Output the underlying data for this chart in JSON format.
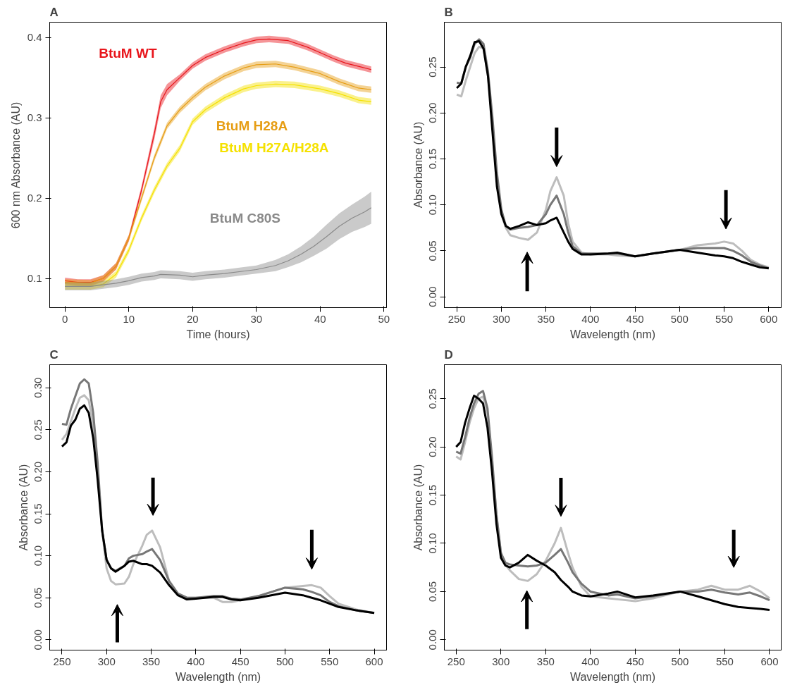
{
  "chart_data": [
    {
      "type": "line",
      "title": "A",
      "xlabel": "Time (hours)",
      "ylabel": "600 nm Absorbance (AU)",
      "xlim": [
        -2.4,
        50.4
      ],
      "xticks": [
        0,
        10,
        20,
        30,
        40,
        50
      ],
      "ylim": [
        0.0636,
        0.419
      ],
      "yticks": [
        0.1,
        0.2,
        0.3,
        0.4
      ],
      "series": [
        {
          "name": "BtuM WT",
          "color": "#e8151b",
          "x": [
            0,
            2,
            4,
            6,
            8,
            10,
            12,
            14,
            15,
            16,
            18,
            20,
            22,
            25,
            28,
            30,
            32,
            35,
            38,
            40,
            42,
            44,
            46,
            48
          ],
          "values": [
            0.097,
            0.095,
            0.095,
            0.1,
            0.115,
            0.15,
            0.21,
            0.28,
            0.32,
            0.335,
            0.35,
            0.365,
            0.375,
            0.385,
            0.393,
            0.397,
            0.398,
            0.396,
            0.388,
            0.381,
            0.374,
            0.368,
            0.364,
            0.36
          ],
          "lower": [
            0.093,
            0.091,
            0.091,
            0.096,
            0.111,
            0.146,
            0.205,
            0.273,
            0.312,
            0.328,
            0.346,
            0.361,
            0.371,
            0.381,
            0.389,
            0.393,
            0.394,
            0.392,
            0.384,
            0.377,
            0.37,
            0.364,
            0.36,
            0.356
          ],
          "upper": [
            0.101,
            0.099,
            0.099,
            0.104,
            0.119,
            0.154,
            0.215,
            0.287,
            0.328,
            0.342,
            0.354,
            0.369,
            0.379,
            0.389,
            0.397,
            0.401,
            0.402,
            0.4,
            0.392,
            0.385,
            0.378,
            0.372,
            0.368,
            0.364
          ]
        },
        {
          "name": "BtuM H28A",
          "color": "#e69d14",
          "x": [
            0,
            4,
            6,
            8,
            10,
            12,
            14,
            16,
            18,
            20,
            22,
            25,
            28,
            30,
            33,
            36,
            40,
            43,
            46,
            48
          ],
          "values": [
            0.095,
            0.094,
            0.1,
            0.115,
            0.15,
            0.2,
            0.25,
            0.29,
            0.31,
            0.325,
            0.338,
            0.352,
            0.362,
            0.366,
            0.367,
            0.363,
            0.355,
            0.345,
            0.337,
            0.335
          ],
          "lower": [
            0.091,
            0.09,
            0.096,
            0.111,
            0.146,
            0.196,
            0.246,
            0.286,
            0.306,
            0.321,
            0.334,
            0.348,
            0.358,
            0.362,
            0.363,
            0.359,
            0.351,
            0.341,
            0.333,
            0.331
          ],
          "upper": [
            0.099,
            0.098,
            0.104,
            0.119,
            0.154,
            0.204,
            0.254,
            0.294,
            0.314,
            0.329,
            0.342,
            0.356,
            0.366,
            0.37,
            0.371,
            0.367,
            0.359,
            0.349,
            0.341,
            0.339
          ]
        },
        {
          "name": "BtuM H27A/H28A",
          "color": "#f5e100",
          "x": [
            0,
            4,
            6,
            8,
            10,
            12,
            14,
            16,
            18,
            20,
            22,
            25,
            28,
            30,
            33,
            36,
            40,
            43,
            46,
            48
          ],
          "values": [
            0.09,
            0.09,
            0.093,
            0.105,
            0.135,
            0.175,
            0.21,
            0.24,
            0.262,
            0.295,
            0.31,
            0.325,
            0.336,
            0.34,
            0.342,
            0.341,
            0.336,
            0.33,
            0.322,
            0.32
          ],
          "lower": [
            0.086,
            0.086,
            0.089,
            0.101,
            0.131,
            0.171,
            0.206,
            0.236,
            0.258,
            0.291,
            0.306,
            0.321,
            0.332,
            0.336,
            0.338,
            0.337,
            0.332,
            0.326,
            0.318,
            0.316
          ],
          "upper": [
            0.094,
            0.094,
            0.097,
            0.109,
            0.139,
            0.179,
            0.214,
            0.244,
            0.266,
            0.299,
            0.314,
            0.329,
            0.34,
            0.344,
            0.346,
            0.345,
            0.34,
            0.334,
            0.326,
            0.324
          ]
        },
        {
          "name": "BtuM C80S",
          "color": "#8a8a8a",
          "x": [
            0,
            4,
            6,
            8,
            10,
            12,
            14,
            15,
            18,
            20,
            22,
            25,
            28,
            30,
            33,
            35,
            37,
            39,
            41,
            43,
            45,
            47,
            48
          ],
          "values": [
            0.09,
            0.09,
            0.092,
            0.094,
            0.097,
            0.101,
            0.103,
            0.105,
            0.104,
            0.102,
            0.104,
            0.106,
            0.109,
            0.111,
            0.116,
            0.122,
            0.13,
            0.14,
            0.152,
            0.165,
            0.175,
            0.183,
            0.188
          ],
          "lower": [
            0.085,
            0.085,
            0.087,
            0.089,
            0.092,
            0.096,
            0.098,
            0.1,
            0.099,
            0.097,
            0.099,
            0.101,
            0.104,
            0.106,
            0.109,
            0.114,
            0.12,
            0.128,
            0.137,
            0.149,
            0.158,
            0.164,
            0.168
          ],
          "upper": [
            0.095,
            0.095,
            0.097,
            0.099,
            0.102,
            0.106,
            0.108,
            0.11,
            0.109,
            0.107,
            0.109,
            0.111,
            0.114,
            0.116,
            0.123,
            0.13,
            0.14,
            0.152,
            0.167,
            0.181,
            0.192,
            0.202,
            0.208
          ]
        }
      ]
    },
    {
      "type": "line",
      "title": "B",
      "xlabel": "Wavelength (nm)",
      "ylabel": "Absorbance (AU)",
      "xlim": [
        236,
        614
      ],
      "xticks": [
        250,
        300,
        350,
        400,
        450,
        500,
        550,
        600
      ],
      "ylim": [
        -0.0118,
        0.2987
      ],
      "yticks": [
        {
          "value": 0,
          "label": "0.00"
        },
        {
          "value": 0.05,
          "label": "0.05"
        },
        {
          "value": 0.1,
          "label": "0.10"
        },
        {
          "value": 0.15,
          "label": "0.15"
        },
        {
          "value": 0.2,
          "label": "0.20"
        },
        {
          "value": 0.25,
          "label": "0.25"
        }
      ],
      "x": [
        250,
        255,
        260,
        265,
        270,
        275,
        280,
        285,
        290,
        295,
        300,
        305,
        310,
        320,
        330,
        340,
        350,
        355,
        362,
        370,
        375,
        380,
        390,
        400,
        420,
        430,
        450,
        470,
        500,
        520,
        540,
        550,
        560,
        570,
        580,
        590,
        600
      ],
      "series": [
        {
          "color": "#bdbdbd",
          "values": [
            0.22,
            0.218,
            0.235,
            0.25,
            0.265,
            0.272,
            0.27,
            0.24,
            0.19,
            0.13,
            0.09,
            0.075,
            0.067,
            0.064,
            0.062,
            0.07,
            0.095,
            0.115,
            0.13,
            0.11,
            0.08,
            0.06,
            0.048,
            0.046,
            0.046,
            0.045,
            0.044,
            0.047,
            0.051,
            0.056,
            0.058,
            0.06,
            0.058,
            0.05,
            0.04,
            0.035,
            0.032
          ]
        },
        {
          "color": "#777777",
          "values": [
            0.233,
            0.232,
            0.25,
            0.26,
            0.275,
            0.28,
            0.275,
            0.245,
            0.195,
            0.135,
            0.095,
            0.077,
            0.073,
            0.075,
            0.076,
            0.078,
            0.09,
            0.1,
            0.11,
            0.09,
            0.07,
            0.055,
            0.047,
            0.047,
            0.047,
            0.047,
            0.044,
            0.047,
            0.051,
            0.053,
            0.053,
            0.053,
            0.05,
            0.045,
            0.038,
            0.034,
            0.031
          ]
        },
        {
          "color": "#000000",
          "values": [
            0.227,
            0.232,
            0.25,
            0.262,
            0.277,
            0.278,
            0.27,
            0.24,
            0.18,
            0.12,
            0.09,
            0.077,
            0.074,
            0.077,
            0.081,
            0.078,
            0.08,
            0.083,
            0.086,
            0.07,
            0.06,
            0.052,
            0.046,
            0.046,
            0.047,
            0.048,
            0.044,
            0.047,
            0.051,
            0.048,
            0.045,
            0.044,
            0.042,
            0.038,
            0.035,
            0.032,
            0.031
          ]
        }
      ]
    },
    {
      "type": "line",
      "title": "C",
      "xlabel": "Wavelength (nm)",
      "ylabel": "Absorbance (AU)",
      "xlim": [
        236.2,
        613.8
      ],
      "xticks": [
        250,
        300,
        350,
        400,
        450,
        500,
        550,
        600
      ],
      "ylim": [
        -0.0123,
        0.3274
      ],
      "yticks": [
        {
          "value": 0,
          "label": "0.00"
        },
        {
          "value": 0.05,
          "label": "0.05"
        },
        {
          "value": 0.1,
          "label": "0.10"
        },
        {
          "value": 0.15,
          "label": "0.15"
        },
        {
          "value": 0.2,
          "label": "0.20"
        },
        {
          "value": 0.25,
          "label": "0.25"
        },
        {
          "value": 0.3,
          "label": "0.30"
        }
      ],
      "x": [
        250,
        255,
        260,
        265,
        270,
        275,
        280,
        285,
        290,
        295,
        300,
        305,
        310,
        320,
        325,
        330,
        340,
        345,
        351,
        360,
        370,
        380,
        390,
        400,
        420,
        430,
        440,
        450,
        470,
        500,
        520,
        530,
        540,
        550,
        560,
        580,
        600
      ],
      "series": [
        {
          "color": "#bdbdbd",
          "values": [
            0.238,
            0.245,
            0.26,
            0.275,
            0.288,
            0.291,
            0.285,
            0.255,
            0.2,
            0.13,
            0.085,
            0.07,
            0.066,
            0.067,
            0.075,
            0.09,
            0.112,
            0.125,
            0.13,
            0.11,
            0.07,
            0.055,
            0.05,
            0.05,
            0.05,
            0.045,
            0.045,
            0.047,
            0.052,
            0.062,
            0.064,
            0.065,
            0.062,
            0.052,
            0.043,
            0.036,
            0.032
          ]
        },
        {
          "color": "#777777",
          "values": [
            0.257,
            0.256,
            0.275,
            0.29,
            0.305,
            0.31,
            0.305,
            0.27,
            0.21,
            0.13,
            0.095,
            0.085,
            0.082,
            0.088,
            0.097,
            0.1,
            0.102,
            0.105,
            0.108,
            0.095,
            0.07,
            0.055,
            0.05,
            0.05,
            0.052,
            0.052,
            0.049,
            0.048,
            0.052,
            0.062,
            0.06,
            0.057,
            0.053,
            0.045,
            0.04,
            0.035,
            0.032
          ]
        },
        {
          "color": "#000000",
          "values": [
            0.23,
            0.235,
            0.255,
            0.262,
            0.275,
            0.279,
            0.27,
            0.24,
            0.19,
            0.13,
            0.095,
            0.085,
            0.081,
            0.088,
            0.093,
            0.094,
            0.09,
            0.09,
            0.088,
            0.08,
            0.065,
            0.053,
            0.048,
            0.049,
            0.051,
            0.051,
            0.048,
            0.047,
            0.05,
            0.056,
            0.053,
            0.05,
            0.047,
            0.043,
            0.039,
            0.035,
            0.032
          ]
        }
      ]
    },
    {
      "type": "line",
      "title": "D",
      "xlabel": "Wavelength (nm)",
      "ylabel": "Absorbance (AU)",
      "xlim": [
        236.8,
        613
      ],
      "xticks": [
        250,
        300,
        350,
        400,
        450,
        500,
        550,
        600
      ],
      "ylim": [
        -0.0107,
        0.2852
      ],
      "yticks": [
        {
          "value": 0,
          "label": "0.00"
        },
        {
          "value": 0.05,
          "label": "0.05"
        },
        {
          "value": 0.1,
          "label": "0.10"
        },
        {
          "value": 0.15,
          "label": "0.15"
        },
        {
          "value": 0.2,
          "label": "0.20"
        },
        {
          "value": 0.25,
          "label": "0.25"
        }
      ],
      "x": [
        250,
        255,
        260,
        265,
        270,
        275,
        280,
        285,
        290,
        295,
        300,
        305,
        310,
        320,
        330,
        340,
        350,
        360,
        367,
        375,
        380,
        390,
        400,
        420,
        430,
        450,
        470,
        500,
        520,
        535,
        550,
        565,
        578,
        590,
        600
      ],
      "series": [
        {
          "color": "#bdbdbd",
          "values": [
            0.19,
            0.187,
            0.205,
            0.225,
            0.24,
            0.25,
            0.252,
            0.235,
            0.185,
            0.13,
            0.09,
            0.078,
            0.072,
            0.063,
            0.061,
            0.068,
            0.082,
            0.1,
            0.116,
            0.09,
            0.075,
            0.055,
            0.045,
            0.043,
            0.042,
            0.04,
            0.043,
            0.05,
            0.052,
            0.056,
            0.052,
            0.052,
            0.056,
            0.05,
            0.043
          ]
        },
        {
          "color": "#777777",
          "values": [
            0.195,
            0.193,
            0.21,
            0.23,
            0.245,
            0.255,
            0.258,
            0.24,
            0.19,
            0.13,
            0.09,
            0.08,
            0.078,
            0.077,
            0.076,
            0.077,
            0.08,
            0.088,
            0.094,
            0.08,
            0.07,
            0.058,
            0.05,
            0.046,
            0.047,
            0.043,
            0.045,
            0.05,
            0.05,
            0.052,
            0.049,
            0.047,
            0.049,
            0.045,
            0.041
          ]
        },
        {
          "color": "#000000",
          "values": [
            0.2,
            0.205,
            0.225,
            0.24,
            0.253,
            0.25,
            0.245,
            0.22,
            0.175,
            0.12,
            0.085,
            0.077,
            0.075,
            0.08,
            0.088,
            0.082,
            0.077,
            0.07,
            0.062,
            0.055,
            0.05,
            0.046,
            0.045,
            0.048,
            0.05,
            0.044,
            0.046,
            0.05,
            0.045,
            0.041,
            0.037,
            0.034,
            0.033,
            0.032,
            0.031
          ]
        }
      ]
    }
  ]
}
